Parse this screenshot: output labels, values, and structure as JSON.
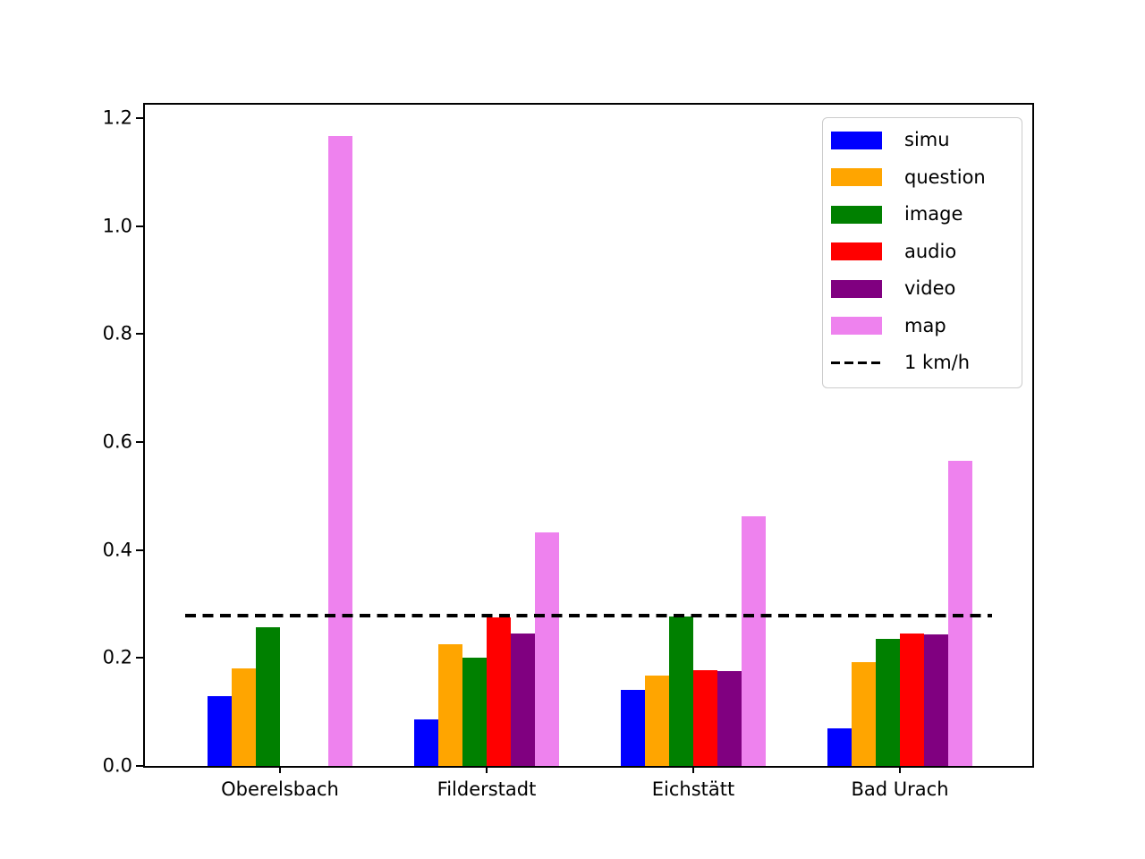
{
  "chart_data": {
    "type": "bar",
    "title": "",
    "xlabel": "",
    "ylabel": "",
    "grid": false,
    "legend_position": "upper right",
    "categories": [
      "Oberelsbach",
      "Filderstadt",
      "Eichstätt",
      "Bad Urach"
    ],
    "series": [
      {
        "name": "simu",
        "color": "#0000ff",
        "values": [
          0.13,
          0.087,
          0.141,
          0.07
        ]
      },
      {
        "name": "question",
        "color": "#ffa500",
        "values": [
          0.181,
          0.226,
          0.167,
          0.193
        ]
      },
      {
        "name": "image",
        "color": "#008000",
        "values": [
          0.257,
          0.201,
          0.277,
          0.235
        ]
      },
      {
        "name": "audio",
        "color": "#ff0000",
        "values": [
          0.0,
          0.275,
          0.177,
          0.246
        ]
      },
      {
        "name": "video",
        "color": "#800080",
        "values": [
          0.0,
          0.246,
          0.175,
          0.244
        ]
      },
      {
        "name": "map",
        "color": "#ee82ee",
        "values": [
          1.167,
          0.433,
          0.463,
          0.566
        ]
      }
    ],
    "reference_line": {
      "label": "1 km/h",
      "value": 0.278,
      "style": "dashed",
      "color": "#000000"
    },
    "ylim": [
      0,
      1.225
    ],
    "y_ticks": [
      0.0,
      0.2,
      0.4,
      0.6,
      0.8,
      1.0,
      1.2
    ],
    "y_tick_labels": [
      "0.0",
      "0.2",
      "0.4",
      "0.6",
      "0.8",
      "1.0",
      "1.2"
    ]
  }
}
